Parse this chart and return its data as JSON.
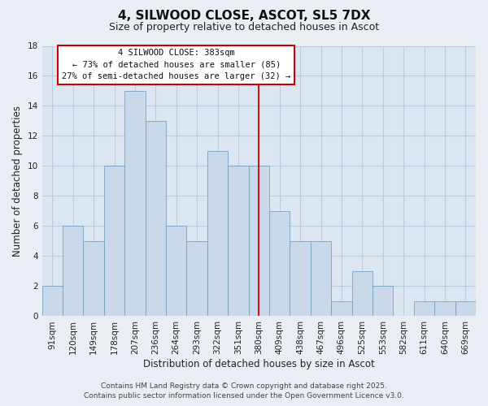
{
  "title": "4, SILWOOD CLOSE, ASCOT, SL5 7DX",
  "subtitle": "Size of property relative to detached houses in Ascot",
  "xlabel": "Distribution of detached houses by size in Ascot",
  "ylabel": "Number of detached properties",
  "categories": [
    "91sqm",
    "120sqm",
    "149sqm",
    "178sqm",
    "207sqm",
    "236sqm",
    "264sqm",
    "293sqm",
    "322sqm",
    "351sqm",
    "380sqm",
    "409sqm",
    "438sqm",
    "467sqm",
    "496sqm",
    "525sqm",
    "553sqm",
    "582sqm",
    "611sqm",
    "640sqm",
    "669sqm"
  ],
  "values": [
    2,
    6,
    5,
    10,
    15,
    13,
    6,
    5,
    11,
    10,
    10,
    7,
    5,
    5,
    1,
    3,
    2,
    0,
    1,
    1,
    1
  ],
  "bar_color": "#c9d9ea",
  "bar_edge_color": "#7a9fc0",
  "vline_color": "#cc0000",
  "vline_index": 10,
  "annotation_title": "4 SILWOOD CLOSE: 383sqm",
  "annotation_line1": "← 73% of detached houses are smaller (85)",
  "annotation_line2": "27% of semi-detached houses are larger (32) →",
  "annotation_box_facecolor": "#ffffff",
  "annotation_box_edgecolor": "#cc0000",
  "ylim": [
    0,
    18
  ],
  "yticks": [
    0,
    2,
    4,
    6,
    8,
    10,
    12,
    14,
    16,
    18
  ],
  "footer1": "Contains HM Land Registry data © Crown copyright and database right 2025.",
  "footer2": "Contains public sector information licensed under the Open Government Licence v3.0.",
  "fig_bg_color": "#e8eef4",
  "plot_bg_color": "#dce6f0",
  "grid_color": "#b8cde0",
  "title_fontsize": 11,
  "subtitle_fontsize": 9,
  "axis_label_fontsize": 8.5,
  "tick_fontsize": 7.5,
  "footer_fontsize": 6.5
}
